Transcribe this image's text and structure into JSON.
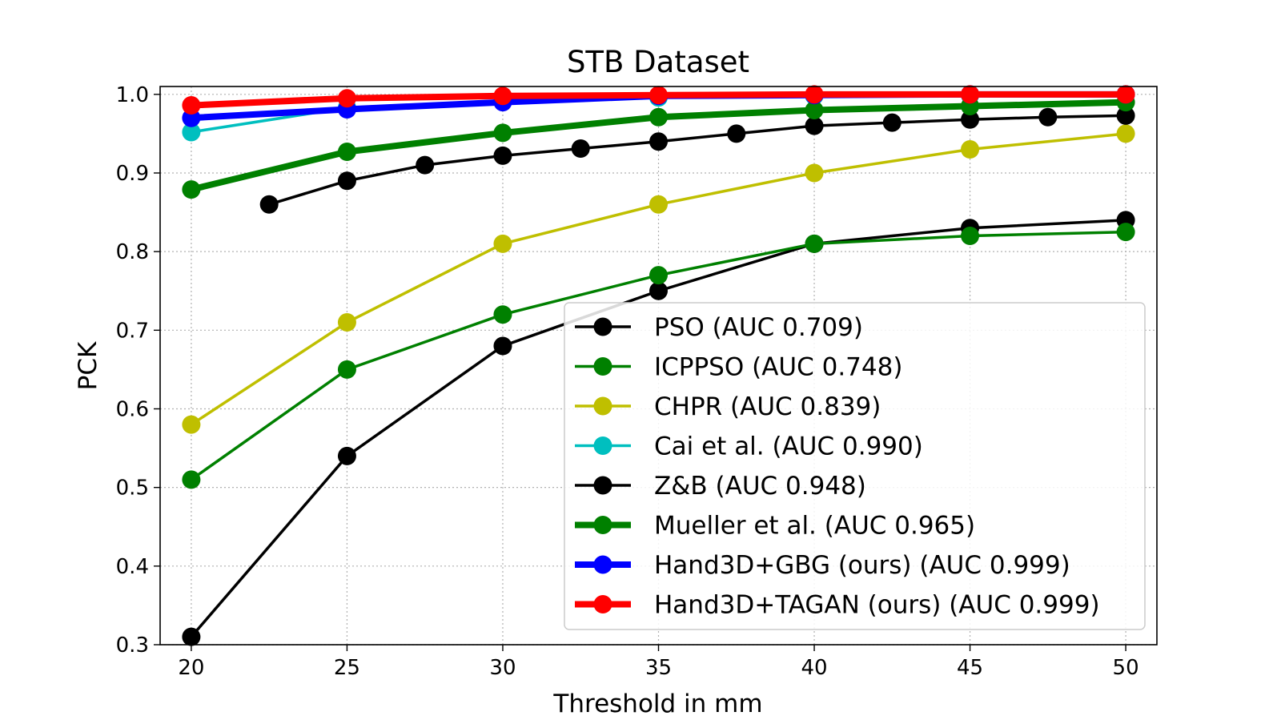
{
  "chart_data": {
    "type": "line",
    "title": "STB Dataset",
    "xlabel": "Threshold in mm",
    "ylabel": "PCK",
    "xlim": [
      19,
      51
    ],
    "ylim": [
      0.3,
      1.01
    ],
    "xticks": [
      20,
      25,
      30,
      35,
      40,
      45,
      50
    ],
    "yticks": [
      0.3,
      0.4,
      0.5,
      0.6,
      0.7,
      0.8,
      0.9,
      1.0
    ],
    "xtick_labels": [
      "20",
      "25",
      "30",
      "35",
      "40",
      "45",
      "50"
    ],
    "ytick_labels": [
      "0.3",
      "0.4",
      "0.5",
      "0.6",
      "0.7",
      "0.8",
      "0.9",
      "1.0"
    ],
    "grid": true,
    "legend_position": "lower-right",
    "series": [
      {
        "name": "PSO (AUC 0.709)",
        "color": "#000000",
        "width": "thin",
        "x": [
          20,
          25,
          30,
          35,
          40,
          45,
          50
        ],
        "y": [
          0.31,
          0.54,
          0.68,
          0.75,
          0.81,
          0.83,
          0.84
        ]
      },
      {
        "name": "ICPPSO (AUC 0.748)",
        "color": "#008000",
        "width": "thin",
        "x": [
          20,
          25,
          30,
          35,
          40,
          45,
          50
        ],
        "y": [
          0.51,
          0.65,
          0.72,
          0.77,
          0.81,
          0.82,
          0.825
        ]
      },
      {
        "name": "CHPR (AUC 0.839)",
        "color": "#bfbf00",
        "width": "thin",
        "x": [
          20,
          25,
          30,
          35,
          40,
          45,
          50
        ],
        "y": [
          0.58,
          0.71,
          0.81,
          0.86,
          0.9,
          0.93,
          0.95
        ]
      },
      {
        "name": "Cai et al. (AUC 0.990)",
        "color": "#00bfbf",
        "width": "thin",
        "x": [
          20,
          25,
          30,
          35,
          40,
          45,
          50
        ],
        "y": [
          0.952,
          0.983,
          0.992,
          0.996,
          0.998,
          0.999,
          1.0
        ]
      },
      {
        "name": "Z&B (AUC 0.948)",
        "color": "#000000",
        "width": "thin",
        "x": [
          22.5,
          25,
          27.5,
          30,
          32.5,
          35,
          37.5,
          40,
          42.5,
          45,
          47.5,
          50
        ],
        "y": [
          0.86,
          0.89,
          0.91,
          0.922,
          0.931,
          0.94,
          0.95,
          0.96,
          0.964,
          0.968,
          0.971,
          0.973
        ]
      },
      {
        "name": "Mueller et al. (AUC 0.965)",
        "color": "#008000",
        "width": "thick",
        "x": [
          20,
          25,
          30,
          35,
          40,
          45,
          50
        ],
        "y": [
          0.879,
          0.927,
          0.951,
          0.971,
          0.98,
          0.985,
          0.99
        ]
      },
      {
        "name": "Hand3D+GBG (ours) (AUC 0.999)",
        "color": "#0000ff",
        "width": "thick",
        "x": [
          20,
          25,
          30,
          35,
          40,
          45,
          50
        ],
        "y": [
          0.97,
          0.981,
          0.99,
          0.998,
          0.999,
          1.0,
          1.0
        ]
      },
      {
        "name": "Hand3D+TAGAN (ours) (AUC 0.999)",
        "color": "#ff0000",
        "width": "thick",
        "x": [
          20,
          25,
          30,
          35,
          40,
          45,
          50
        ],
        "y": [
          0.986,
          0.995,
          0.998,
          0.999,
          1.0,
          1.0,
          1.0
        ]
      }
    ]
  }
}
